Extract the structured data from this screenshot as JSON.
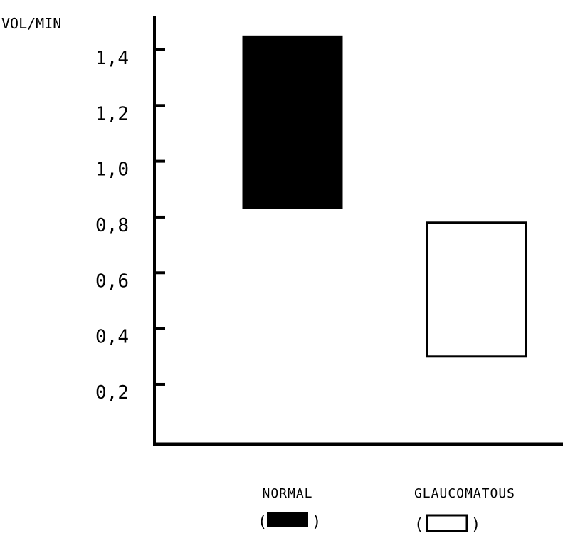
{
  "chart_data": {
    "type": "bar",
    "ylabel": "VOL/MIN",
    "yticks": [
      "0,2",
      "0,4",
      "0,6",
      "0,8",
      "1,0",
      "1,2",
      "1,4"
    ],
    "ytick_values": [
      0.2,
      0.4,
      0.6,
      0.8,
      1.0,
      1.2,
      1.4
    ],
    "ylim": [
      0,
      1.5
    ],
    "grid": false,
    "series": [
      {
        "name": "NORMAL",
        "low": 0.83,
        "high": 1.45,
        "fill": "#000000",
        "symbol": "( )"
      },
      {
        "name": "GLAUCOMATOUS",
        "low": 0.3,
        "high": 0.78,
        "fill": "#ffffff",
        "symbol": "( )"
      }
    ]
  }
}
